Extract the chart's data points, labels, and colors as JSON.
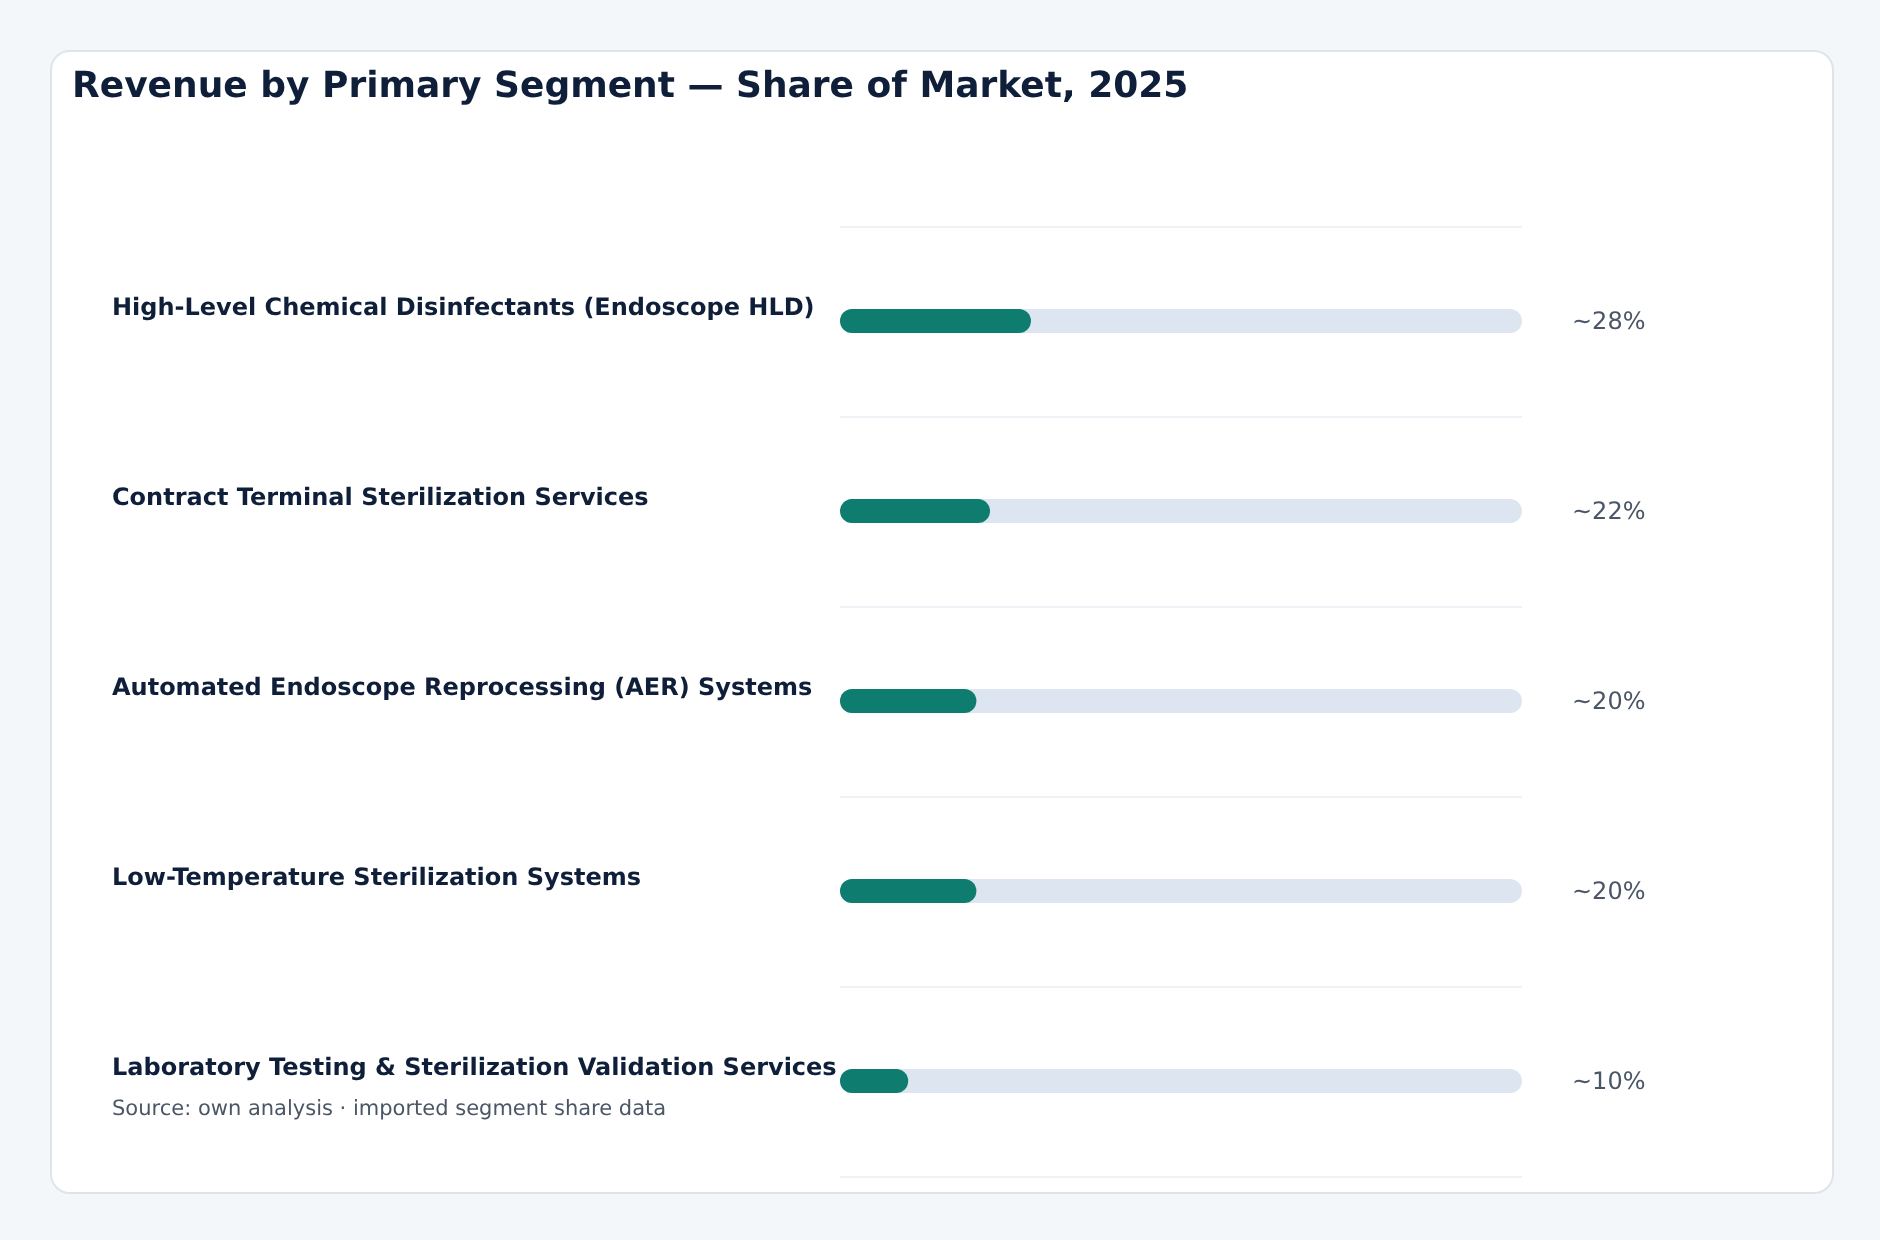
{
  "chart_data": {
    "type": "bar",
    "orientation": "horizontal",
    "title": "Revenue by Primary Segment — Share of Market, 2025",
    "categories": [
      "High-Level Chemical Disinfectants (Endoscope HLD)",
      "Contract Terminal Sterilization Services",
      "Automated Endoscope Reprocessing (AER) Systems",
      "Low-Temperature Sterilization Systems",
      "Laboratory Testing & Sterilization Validation Services"
    ],
    "values": [
      28,
      22,
      20,
      20,
      10
    ],
    "value_labels": [
      "~28%",
      "~22%",
      "~20%",
      "~20%",
      "~10%"
    ],
    "color": "#0e7c6f",
    "xlim": [
      0,
      100
    ],
    "tick_labels": false,
    "grid": "y",
    "annotations": [
      "Source: own analysis · imported segment share data"
    ]
  }
}
